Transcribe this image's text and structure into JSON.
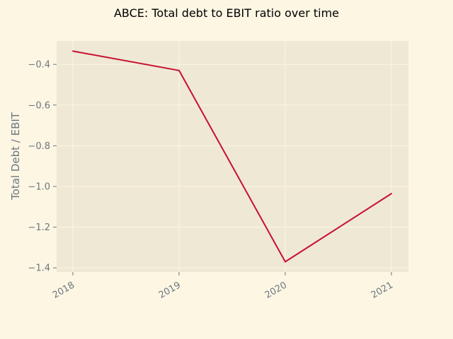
{
  "chart_data": {
    "type": "line",
    "title": "ABCE: Total debt to EBIT ratio over time",
    "xlabel": "",
    "ylabel": "Total Debt / EBIT",
    "categories": [
      "2018",
      "2019",
      "2020",
      "2021"
    ],
    "series": [
      {
        "values": [
          -0.335,
          -0.43,
          -1.37,
          -1.035
        ],
        "color": "#c8102e"
      }
    ],
    "yticks": [
      -0.4,
      -0.6,
      -0.8,
      -1.0,
      -1.2,
      -1.4
    ],
    "ytick_labels": [
      "−0.4",
      "−0.6",
      "−0.8",
      "−1.0",
      "−1.2",
      "−1.4"
    ],
    "ylim": [
      -1.42,
      -0.285
    ],
    "grid": true,
    "legend": "none"
  },
  "colors": {
    "background": "#fdf6e3",
    "plot_area": "#eee8d5",
    "grid": "#fdf6e3",
    "tick_text": "#6b7780"
  }
}
